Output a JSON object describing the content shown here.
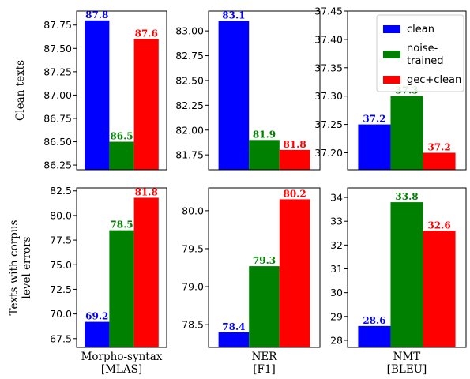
{
  "chart_data": [
    {
      "type": "bar",
      "row": 0,
      "col": 0,
      "ylabel": "Clean texts",
      "xlabel": "",
      "categories": [
        "clean",
        "noise-trained",
        "gec+clean"
      ],
      "values": [
        87.8,
        86.5,
        87.6
      ],
      "value_labels": [
        "87.8",
        "86.5",
        "87.6"
      ],
      "colors": [
        "#0000ff",
        "#008000",
        "#ff0000"
      ],
      "ylim": [
        86.2,
        87.9
      ],
      "yticks": [
        86.25,
        86.5,
        86.75,
        87.0,
        87.25,
        87.5,
        87.75
      ],
      "ytick_labels": [
        "86.25",
        "86.50",
        "86.75",
        "87.00",
        "87.25",
        "87.50",
        "87.75"
      ]
    },
    {
      "type": "bar",
      "row": 0,
      "col": 1,
      "ylabel": "",
      "xlabel": "",
      "categories": [
        "clean",
        "noise-trained",
        "gec+clean"
      ],
      "values": [
        83.1,
        81.9,
        81.8
      ],
      "value_labels": [
        "83.1",
        "81.9",
        "81.8"
      ],
      "colors": [
        "#0000ff",
        "#008000",
        "#ff0000"
      ],
      "ylim": [
        81.6,
        83.2
      ],
      "yticks": [
        81.75,
        82.0,
        82.25,
        82.5,
        82.75,
        83.0
      ],
      "ytick_labels": [
        "81.75",
        "82.00",
        "82.25",
        "82.50",
        "82.75",
        "83.00"
      ]
    },
    {
      "type": "bar",
      "row": 0,
      "col": 2,
      "ylabel": "",
      "xlabel": "",
      "categories": [
        "clean",
        "noise-trained",
        "gec+clean"
      ],
      "values": [
        37.25,
        37.3,
        37.2
      ],
      "value_labels": [
        "37.2",
        "37.3",
        "37.2"
      ],
      "colors": [
        "#0000ff",
        "#008000",
        "#ff0000"
      ],
      "ylim": [
        37.17,
        37.45
      ],
      "yticks": [
        37.2,
        37.25,
        37.3,
        37.35,
        37.4,
        37.45
      ],
      "ytick_labels": [
        "37.20",
        "37.25",
        "37.30",
        "37.35",
        "37.40",
        "37.45"
      ],
      "legend": {
        "placement": "top-right",
        "entries": [
          {
            "label_lines": [
              "clean"
            ],
            "color": "#0000ff"
          },
          {
            "label_lines": [
              "noise-",
              "trained"
            ],
            "color": "#008000"
          },
          {
            "label_lines": [
              "gec+clean"
            ],
            "color": "#ff0000"
          }
        ]
      }
    },
    {
      "type": "bar",
      "row": 1,
      "col": 0,
      "ylabel": "Texts with corpus\nlevel errors",
      "xlabel": "Morpho-syntax\n[MLAS]",
      "categories": [
        "clean",
        "noise-trained",
        "gec+clean"
      ],
      "values": [
        69.2,
        78.5,
        81.8
      ],
      "value_labels": [
        "69.2",
        "78.5",
        "81.8"
      ],
      "colors": [
        "#0000ff",
        "#008000",
        "#ff0000"
      ],
      "ylim": [
        66.6,
        82.8
      ],
      "yticks": [
        67.5,
        70.0,
        72.5,
        75.0,
        77.5,
        80.0,
        82.5
      ],
      "ytick_labels": [
        "67.5",
        "70.0",
        "72.5",
        "75.0",
        "77.5",
        "80.0",
        "82.5"
      ]
    },
    {
      "type": "bar",
      "row": 1,
      "col": 1,
      "ylabel": "",
      "xlabel": "NER\n[F1]",
      "categories": [
        "clean",
        "noise-trained",
        "gec+clean"
      ],
      "values": [
        78.4,
        79.27,
        80.15
      ],
      "value_labels": [
        "78.4",
        "79.3",
        "80.2"
      ],
      "colors": [
        "#0000ff",
        "#008000",
        "#ff0000"
      ],
      "ylim": [
        78.2,
        80.3
      ],
      "yticks": [
        78.5,
        79.0,
        79.5,
        80.0
      ],
      "ytick_labels": [
        "78.5",
        "79.0",
        "79.5",
        "80.0"
      ]
    },
    {
      "type": "bar",
      "row": 1,
      "col": 2,
      "ylabel": "",
      "xlabel": "NMT\n[BLEU]",
      "categories": [
        "clean",
        "noise-trained",
        "gec+clean"
      ],
      "values": [
        28.6,
        33.8,
        32.6
      ],
      "value_labels": [
        "28.6",
        "33.8",
        "32.6"
      ],
      "colors": [
        "#0000ff",
        "#008000",
        "#ff0000"
      ],
      "ylim": [
        27.7,
        34.4
      ],
      "yticks": [
        28,
        29,
        30,
        31,
        32,
        33,
        34
      ],
      "ytick_labels": [
        "28",
        "29",
        "30",
        "31",
        "32",
        "33",
        "34"
      ]
    }
  ]
}
